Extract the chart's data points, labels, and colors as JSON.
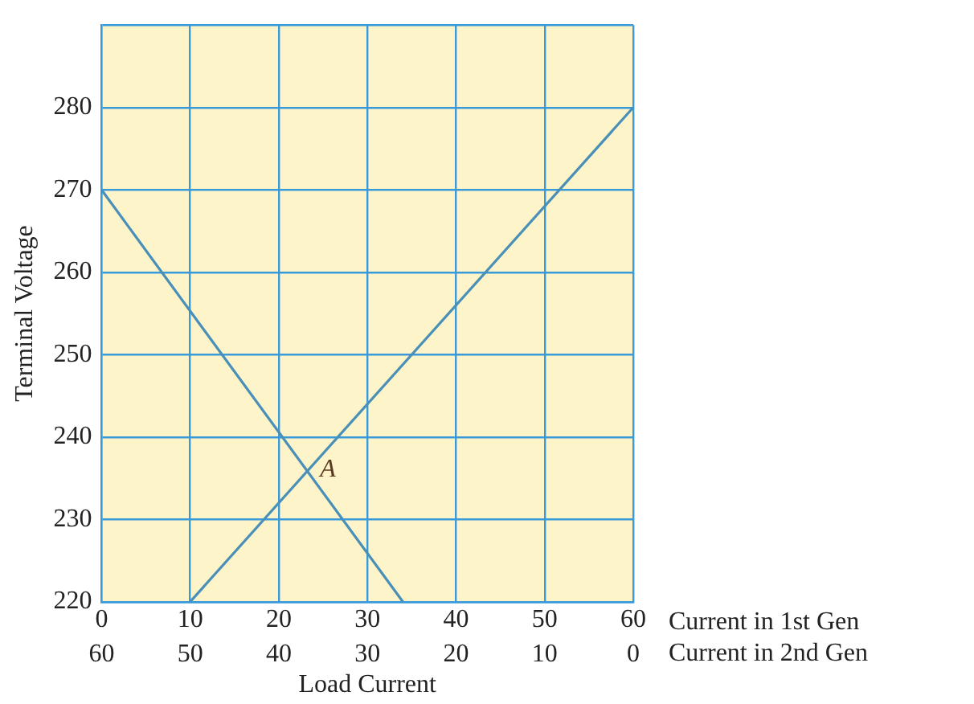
{
  "chart_data": {
    "type": "line",
    "xlabel": "Load Current",
    "ylabel": "Terminal Voltage",
    "xlim": [
      0,
      60
    ],
    "xticks": [
      0,
      10,
      20,
      30,
      40,
      50,
      60
    ],
    "x2lim": [
      60,
      0
    ],
    "x2ticks": [
      60,
      50,
      40,
      30,
      20,
      10,
      0
    ],
    "ylim": [
      220,
      290
    ],
    "yticks": [
      220,
      230,
      240,
      250,
      260,
      270,
      280,
      {
        "value": 290,
        "label": null
      }
    ],
    "series": [
      {
        "color": "#4a8fb8",
        "x": [
          0,
          34
        ],
        "values": [
          270,
          220
        ]
      },
      {
        "color": "#4a8fb8",
        "x": [
          10,
          60
        ],
        "values": [
          220,
          280
        ]
      }
    ],
    "annotations": [
      {
        "text": "A",
        "x": 23.2,
        "y": 236
      },
      "Current in 1st Gen",
      "Current in 2nd Gen"
    ],
    "grid": true,
    "legend": false,
    "marker": "none",
    "line_style": "solid"
  }
}
